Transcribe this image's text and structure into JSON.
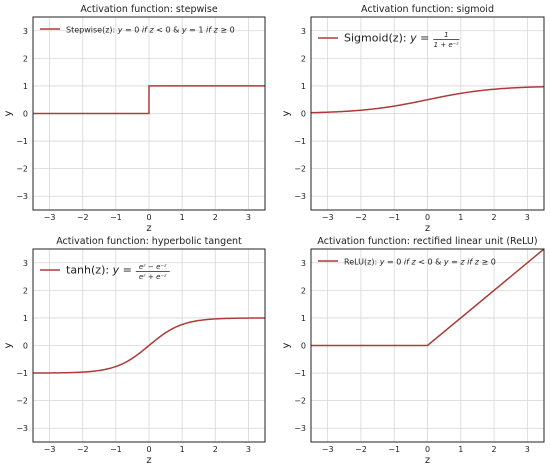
{
  "chart_data": [
    {
      "type": "line",
      "title": "Activation function: stepwise",
      "xlabel": "z",
      "ylabel": "y",
      "xlim": [
        -3.5,
        3.5
      ],
      "ylim": [
        -3.5,
        3.5
      ],
      "xticks": [
        -3,
        -2,
        -1,
        0,
        1,
        2,
        3
      ],
      "yticks": [
        -3,
        -2,
        -1,
        0,
        1,
        2,
        3
      ],
      "grid": true,
      "legend_position": "top-left",
      "color": "#b03a3a",
      "function": "step",
      "series": [
        {
          "name": "Stepwise(z): y = 0 if z < 0 & y = 1 if z ≥ 0",
          "x": [
            -3.5,
            -0.001,
            0,
            3.5
          ],
          "y": [
            0,
            0,
            1,
            1
          ]
        }
      ]
    },
    {
      "type": "line",
      "title": "Activation function: sigmoid",
      "xlabel": "z",
      "ylabel": "y",
      "xlim": [
        -3.5,
        3.5
      ],
      "ylim": [
        -3.5,
        3.5
      ],
      "xticks": [
        -3,
        -2,
        -1,
        0,
        1,
        2,
        3
      ],
      "yticks": [
        -3,
        -2,
        -1,
        0,
        1,
        2,
        3
      ],
      "grid": true,
      "legend_position": "top-left",
      "color": "#b03a3a",
      "function": "sigmoid",
      "series": [
        {
          "name": "Sigmoid(z): y = 1 / (1 + e^-z)",
          "x": [
            -3.5,
            -3,
            -2,
            -1,
            0,
            1,
            2,
            3,
            3.5
          ],
          "y": [
            0.03,
            0.05,
            0.12,
            0.27,
            0.5,
            0.73,
            0.88,
            0.95,
            0.97
          ]
        }
      ]
    },
    {
      "type": "line",
      "title": "Activation function: hyperbolic tangent",
      "xlabel": "z",
      "ylabel": "y",
      "xlim": [
        -3.5,
        3.5
      ],
      "ylim": [
        -3.5,
        3.5
      ],
      "xticks": [
        -3,
        -2,
        -1,
        0,
        1,
        2,
        3
      ],
      "yticks": [
        -3,
        -2,
        -1,
        0,
        1,
        2,
        3
      ],
      "grid": true,
      "legend_position": "top-left",
      "color": "#b03a3a",
      "function": "tanh",
      "series": [
        {
          "name": "tanh(z): y = (e^z − e^-z) / (e^z + e^-z)",
          "x": [
            -3.5,
            -3,
            -2,
            -1,
            0,
            1,
            2,
            3,
            3.5
          ],
          "y": [
            -1.0,
            -0.995,
            -0.96,
            -0.76,
            0,
            0.76,
            0.96,
            0.995,
            1.0
          ]
        }
      ]
    },
    {
      "type": "line",
      "title": "Activation function: rectified linear unit (ReLU)",
      "xlabel": "z",
      "ylabel": "y",
      "xlim": [
        -3.5,
        3.5
      ],
      "ylim": [
        -3.5,
        3.5
      ],
      "xticks": [
        -3,
        -2,
        -1,
        0,
        1,
        2,
        3
      ],
      "yticks": [
        -3,
        -2,
        -1,
        0,
        1,
        2,
        3
      ],
      "grid": true,
      "legend_position": "top-left",
      "color": "#b03a3a",
      "function": "relu",
      "series": [
        {
          "name": "ReLU(z): y = 0 if z < 0 & y = z if z ≥ 0",
          "x": [
            -3.5,
            0,
            3.5
          ],
          "y": [
            0,
            0,
            3.5
          ]
        }
      ]
    }
  ]
}
